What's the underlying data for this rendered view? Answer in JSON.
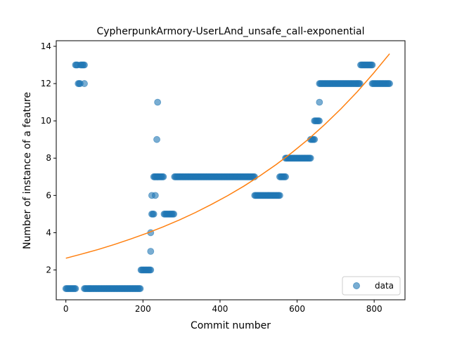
{
  "chart_data": {
    "type": "scatter",
    "title": "CypherpunkArmory-UserLAnd_unsafe_call-exponential",
    "xlabel": "Commit number",
    "ylabel": "Number of instance of a feature",
    "xlim": [
      -25,
      880
    ],
    "ylim": [
      0.4,
      14.3
    ],
    "xticks": [
      0,
      200,
      400,
      600,
      800
    ],
    "yticks": [
      2,
      4,
      6,
      8,
      10,
      12,
      14
    ],
    "legend": {
      "placement": "lower-right",
      "entries": [
        "data"
      ]
    },
    "colors": {
      "data": "#1f77b4",
      "fit": "#ff7f0e"
    },
    "series": [
      {
        "name": "data",
        "kind": "scatter",
        "segments": [
          {
            "x0": 0,
            "x1": 25,
            "y": 1
          },
          {
            "x0": 25,
            "x1": 32,
            "y": 13
          },
          {
            "x0": 32,
            "x1": 38,
            "y": 12
          },
          {
            "x0": 38,
            "x1": 48,
            "y": 13
          },
          {
            "x0": 48,
            "x1": 48,
            "y": 12
          },
          {
            "x0": 48,
            "x1": 195,
            "y": 1
          },
          {
            "x0": 195,
            "x1": 220,
            "y": 2
          },
          {
            "x0": 220,
            "x1": 220,
            "y": 3
          },
          {
            "x0": 220,
            "x1": 220,
            "y": 4
          },
          {
            "x0": 223,
            "x1": 223,
            "y": 6
          },
          {
            "x0": 223,
            "x1": 228,
            "y": 5
          },
          {
            "x0": 228,
            "x1": 232,
            "y": 7
          },
          {
            "x0": 232,
            "x1": 232,
            "y": 6
          },
          {
            "x0": 232,
            "x1": 238,
            "y": 7
          },
          {
            "x0": 236,
            "x1": 236,
            "y": 9
          },
          {
            "x0": 238,
            "x1": 238,
            "y": 11
          },
          {
            "x0": 238,
            "x1": 255,
            "y": 7
          },
          {
            "x0": 255,
            "x1": 282,
            "y": 5
          },
          {
            "x0": 282,
            "x1": 490,
            "y": 7
          },
          {
            "x0": 490,
            "x1": 555,
            "y": 6
          },
          {
            "x0": 555,
            "x1": 570,
            "y": 7
          },
          {
            "x0": 570,
            "x1": 635,
            "y": 8
          },
          {
            "x0": 635,
            "x1": 645,
            "y": 9
          },
          {
            "x0": 645,
            "x1": 658,
            "y": 10
          },
          {
            "x0": 658,
            "x1": 658,
            "y": 11
          },
          {
            "x0": 658,
            "x1": 765,
            "y": 12
          },
          {
            "x0": 765,
            "x1": 795,
            "y": 13
          },
          {
            "x0": 795,
            "x1": 840,
            "y": 12
          }
        ]
      },
      {
        "name": "",
        "kind": "line",
        "x": [
          0,
          42,
          84,
          126,
          168,
          210,
          252,
          294,
          336,
          378,
          420,
          462,
          504,
          546,
          588,
          630,
          672,
          714,
          756,
          798,
          840
        ],
        "y": [
          2.63,
          2.86,
          3.1,
          3.37,
          3.66,
          3.97,
          4.31,
          4.68,
          5.08,
          5.52,
          5.99,
          6.5,
          7.06,
          7.66,
          8.32,
          9.03,
          9.81,
          10.65,
          11.56,
          12.55,
          13.6
        ]
      }
    ]
  }
}
